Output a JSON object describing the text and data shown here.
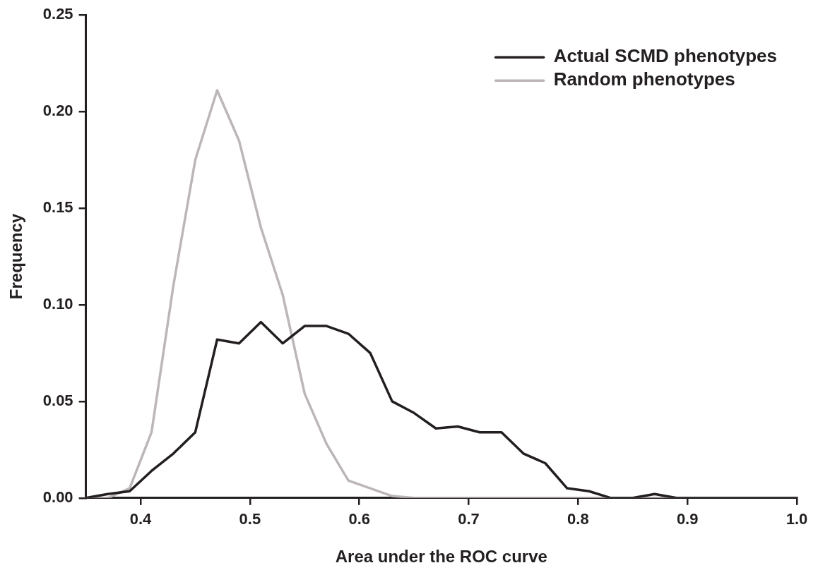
{
  "chart_data": {
    "type": "line",
    "xlabel": "Area under the ROC curve",
    "ylabel": "Frequency",
    "xlim": [
      0.35,
      1.0
    ],
    "xticks": [
      {
        "value": 0.4,
        "label": "0.4"
      },
      {
        "value": 0.5,
        "label": "0.5"
      },
      {
        "value": 0.6,
        "label": "0.6"
      },
      {
        "value": 0.7,
        "label": "0.7"
      },
      {
        "value": 0.8,
        "label": "0.8"
      },
      {
        "value": 0.9,
        "label": "0.9"
      },
      {
        "value": 1.0,
        "label": "1.0"
      }
    ],
    "ylim": [
      0,
      0.25
    ],
    "yticks": [
      {
        "value": 0,
        "label": "0.00"
      },
      {
        "value": 0.05,
        "label": "0.05"
      },
      {
        "value": 0.1,
        "label": "0.10"
      },
      {
        "value": 0.15,
        "label": "0.15"
      },
      {
        "value": 0.2,
        "label": "0.20"
      },
      {
        "value": 0.25,
        "label": "0.25"
      }
    ],
    "x": [
      0.35,
      0.37,
      0.39,
      0.41,
      0.43,
      0.45,
      0.47,
      0.49,
      0.51,
      0.53,
      0.55,
      0.57,
      0.59,
      0.61,
      0.63,
      0.65,
      0.67,
      0.69,
      0.71,
      0.73,
      0.75,
      0.77,
      0.79,
      0.81,
      0.83,
      0.85,
      0.87,
      0.89,
      0.91,
      0.93,
      0.95,
      0.97,
      0.99,
      1.0
    ],
    "grid": false,
    "legend": "top right",
    "marker": "none",
    "line_style": "solid",
    "series": [
      {
        "name": "Actual SCMD phenotypes",
        "color": "#231f20",
        "values": [
          0,
          0.002,
          0.0035,
          0.014,
          0.023,
          0.034,
          0.082,
          0.08,
          0.091,
          0.08,
          0.089,
          0.089,
          0.085,
          0.075,
          0.05,
          0.044,
          0.036,
          0.037,
          0.034,
          0.034,
          0.023,
          0.018,
          0.005,
          0.0035,
          0,
          0,
          0.002,
          0,
          0,
          0,
          0,
          0,
          0,
          0
        ]
      },
      {
        "name": "Random phenotypes",
        "color": "#bcb7b6",
        "values": [
          0,
          0,
          0.005,
          0.034,
          0.11,
          0.175,
          0.211,
          0.185,
          0.14,
          0.105,
          0.054,
          0.028,
          0.009,
          0.005,
          0.001,
          0,
          0,
          0,
          0,
          0,
          0,
          0,
          0,
          0,
          0,
          0,
          0,
          0,
          0,
          0,
          0,
          0,
          0,
          0
        ]
      }
    ]
  }
}
